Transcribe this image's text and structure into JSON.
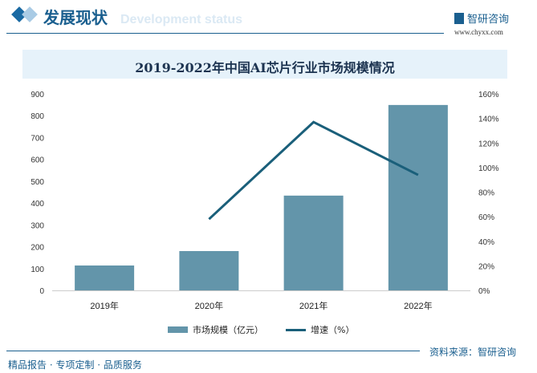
{
  "header": {
    "title": "发展现状",
    "subtitle_en": "Development status",
    "logo_name": "智研咨询",
    "logo_url": "www.chyxx.com"
  },
  "footer": {
    "source": "资料来源：智研咨询",
    "slogan": "精品报告 · 专项定制 · 品质服务"
  },
  "chart_data": {
    "type": "bar+line",
    "title": "2019-2022年中国AI芯片行业市场规模情况",
    "categories": [
      "2019年",
      "2020年",
      "2021年",
      "2022年"
    ],
    "series": [
      {
        "name": "市场规模（亿元）",
        "type": "bar",
        "axis": "left",
        "color": "#6395aa",
        "values": [
          114,
          180,
          434,
          849
        ]
      },
      {
        "name": "增速（%）",
        "type": "line",
        "axis": "right",
        "color": "#1a5f7a",
        "values": [
          null,
          58,
          137,
          94
        ]
      }
    ],
    "left_axis": {
      "range": [
        0,
        900
      ],
      "ticks": [
        "0",
        "100",
        "200",
        "300",
        "400",
        "500",
        "600",
        "700",
        "800",
        "900"
      ]
    },
    "right_axis": {
      "range": [
        0,
        160
      ],
      "ticks": [
        "0%",
        "20%",
        "40%",
        "60%",
        "80%",
        "100%",
        "120%",
        "140%",
        "160%"
      ]
    },
    "legend": "bottom",
    "grid": false
  }
}
